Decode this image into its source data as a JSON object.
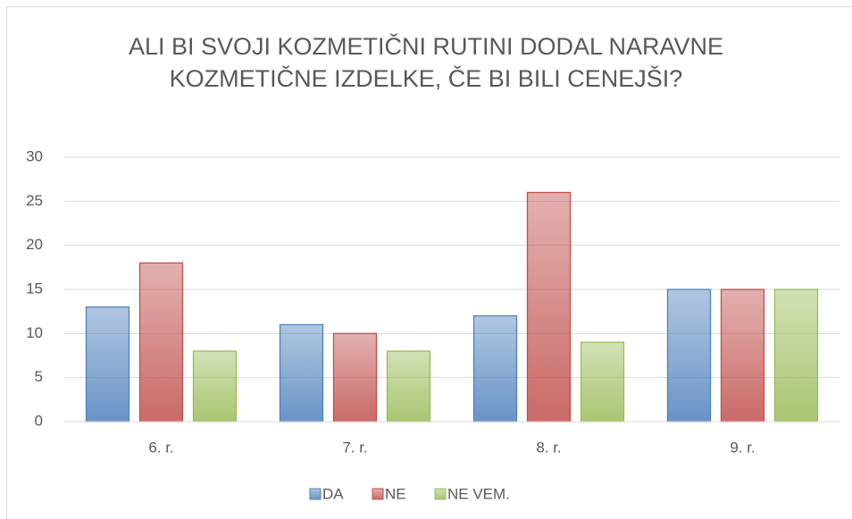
{
  "chart_data": {
    "type": "bar",
    "title": "ALI BI SVOJI KOZMETIČNI RUTINI DODAL NARAVNE KOZMETIČNE IZDELKE, ČE BI BILI CENEJŠI?",
    "categories": [
      "6. r.",
      "7. r.",
      "8. r.",
      "9. r."
    ],
    "series": [
      {
        "name": "DA",
        "color": "#4f81bd",
        "values": [
          13,
          11,
          12,
          15
        ]
      },
      {
        "name": "NE",
        "color": "#c0504d",
        "values": [
          18,
          10,
          26,
          15
        ]
      },
      {
        "name": "NE VEM.",
        "color": "#9bbb59",
        "values": [
          8,
          8,
          9,
          15
        ]
      }
    ],
    "ylim": [
      0,
      30
    ],
    "yticks": [
      0,
      5,
      10,
      15,
      20,
      25,
      30
    ],
    "grid": true,
    "legend": "bottom"
  }
}
